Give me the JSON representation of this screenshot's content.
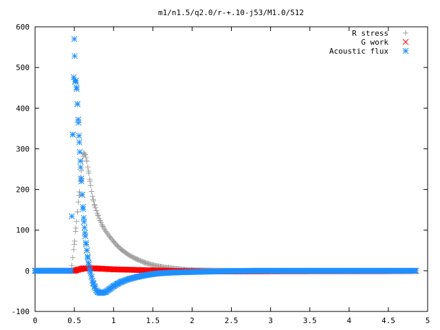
{
  "chart_data": {
    "type": "scatter",
    "title": "m1/n1.5/q2.0/r-+.10-j53/M1.0/512",
    "xlabel": "",
    "ylabel": "",
    "xlim": [
      0,
      5
    ],
    "ylim": [
      -100,
      600
    ],
    "xticks": [
      "0",
      "0.5",
      "1",
      "1.5",
      "2",
      "2.5",
      "3",
      "3.5",
      "4",
      "4.5",
      "5"
    ],
    "yticks": [
      "-100",
      "0",
      "100",
      "200",
      "300",
      "400",
      "500",
      "600"
    ],
    "grid": false,
    "legend_position": "top-right",
    "series": [
      {
        "name": "R stress",
        "marker": "plus",
        "color": "#a0a0a0",
        "x": [
          0.0,
          0.1,
          0.2,
          0.3,
          0.4,
          0.46,
          0.5,
          0.52,
          0.54,
          0.56,
          0.58,
          0.6,
          0.62,
          0.64,
          0.66,
          0.68,
          0.7,
          0.72,
          0.74,
          0.76,
          0.78,
          0.8,
          0.83,
          0.86,
          0.9,
          0.95,
          1.0,
          1.05,
          1.1,
          1.15,
          1.2,
          1.3,
          1.4,
          1.5,
          1.6,
          1.7,
          1.8,
          1.9,
          2.0,
          2.2,
          2.4,
          2.6,
          2.8,
          3.0,
          3.5,
          4.0,
          4.5,
          4.85
        ],
        "y": [
          0,
          0,
          0,
          0,
          0,
          0,
          65,
          105,
          145,
          185,
          230,
          270,
          290,
          285,
          270,
          245,
          220,
          195,
          175,
          160,
          148,
          137,
          123,
          110,
          97,
          84,
          72,
          61,
          52,
          45,
          38,
          28,
          20,
          14,
          10,
          7,
          5,
          3,
          2,
          1,
          0.5,
          0,
          0,
          0,
          0,
          0,
          0,
          0
        ]
      },
      {
        "name": "G work",
        "marker": "cross",
        "color": "#ff0000",
        "x": [
          0.0,
          0.2,
          0.4,
          0.5,
          0.52,
          0.55,
          0.58,
          0.6,
          0.62,
          0.65,
          0.7,
          0.75,
          0.8,
          0.85,
          0.9,
          0.95,
          1.0,
          1.1,
          1.2,
          1.3,
          1.4,
          1.5,
          1.6,
          1.7,
          1.8,
          1.9,
          2.0,
          2.2,
          2.4,
          2.6,
          3.0,
          3.5,
          4.0,
          4.5,
          4.85
        ],
        "y": [
          0,
          0,
          0,
          0,
          1,
          3,
          4,
          5,
          6,
          6,
          6,
          6,
          5.5,
          5,
          4.5,
          4,
          3.5,
          3,
          2.5,
          2,
          1.5,
          1,
          0.5,
          0,
          -0.5,
          -0.8,
          -1,
          -1.5,
          -1.5,
          -1.5,
          -1.2,
          -1,
          -1,
          -0.8,
          -0.5
        ]
      },
      {
        "name": "Acoustic flux",
        "marker": "asterisk",
        "color": "#1e90ff",
        "x": [
          0.0,
          0.1,
          0.2,
          0.3,
          0.4,
          0.46,
          0.48,
          0.5,
          0.51,
          0.52,
          0.53,
          0.54,
          0.55,
          0.56,
          0.57,
          0.58,
          0.59,
          0.6,
          0.61,
          0.62,
          0.63,
          0.64,
          0.65,
          0.66,
          0.67,
          0.68,
          0.7,
          0.72,
          0.74,
          0.76,
          0.78,
          0.8,
          0.83,
          0.86,
          0.9,
          0.95,
          1.0,
          1.05,
          1.1,
          1.2,
          1.3,
          1.4,
          1.5,
          1.6,
          1.8,
          2.0,
          2.2,
          2.4,
          2.6,
          2.8,
          3.0,
          3.5,
          4.0,
          4.5,
          4.85
        ],
        "y": [
          0,
          0,
          0,
          0,
          0,
          0,
          335,
          570,
          465,
          468,
          447,
          410,
          372,
          332,
          292,
          255,
          220,
          187,
          157,
          130,
          106,
          85,
          65,
          50,
          35,
          20,
          0,
          -15,
          -30,
          -40,
          -48,
          -52,
          -55,
          -54,
          -52,
          -45,
          -38,
          -32,
          -27,
          -20,
          -15,
          -11,
          -8,
          -6,
          -4,
          -3,
          -2,
          -1,
          -0.5,
          0,
          0,
          0,
          0,
          0,
          0
        ]
      }
    ]
  }
}
